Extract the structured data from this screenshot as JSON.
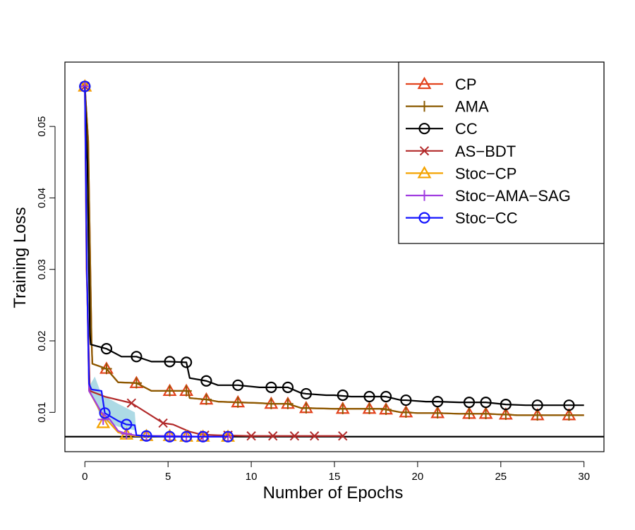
{
  "chart_data": {
    "type": "line",
    "title": "",
    "xlabel": "Number of Epochs",
    "ylabel": "Training Loss",
    "xlim": [
      -1.2,
      31.2
    ],
    "ylim": [
      0.0045,
      0.059
    ],
    "xticks": [
      0,
      5,
      10,
      15,
      20,
      25,
      30
    ],
    "xtick_labels": [
      "0",
      "5",
      "10",
      "15",
      "20",
      "25",
      "30"
    ],
    "yticks": [
      0.01,
      0.02,
      0.03,
      0.04,
      0.05
    ],
    "ytick_labels": [
      "0.01",
      "0.02",
      "0.03",
      "0.04",
      "0.05"
    ],
    "grid": false,
    "legend_position": "top-right",
    "reference_line": {
      "y": 0.0066,
      "color": "#000000"
    },
    "band": {
      "color": "#9fd3e0",
      "x": [
        0.3,
        0.6,
        1.0,
        2.0,
        3.0,
        3.1
      ],
      "upper": [
        0.0138,
        0.015,
        0.0125,
        0.0112,
        0.01,
        0.0068
      ],
      "lower": [
        0.013,
        0.0115,
        0.009,
        0.008,
        0.0075,
        0.0066
      ]
    },
    "series": [
      {
        "name": "CP",
        "color": "#e2431d",
        "marker": "triangle",
        "x": [
          0,
          0.2,
          0.4,
          0.45,
          1.3,
          2.0,
          3.1,
          4.0,
          5.1,
          6.0,
          6.2,
          6.3,
          7.3,
          8.0,
          9.2,
          10.5,
          11.2,
          12.0,
          12.2,
          13.0,
          13.3,
          15.0,
          15.5,
          16.0,
          17.1,
          18.0,
          18.1,
          19.0,
          19.3,
          20.0,
          21.2,
          22.5,
          23.1,
          24.0,
          24.1,
          25.0,
          25.3,
          26.0,
          27.2,
          28.0,
          29.1,
          30.0
        ],
        "y": [
          0.0556,
          0.048,
          0.02,
          0.0168,
          0.0161,
          0.0142,
          0.0141,
          0.013,
          0.013,
          0.013,
          0.013,
          0.012,
          0.0118,
          0.0115,
          0.0114,
          0.0113,
          0.0112,
          0.0112,
          0.0112,
          0.0106,
          0.0106,
          0.0105,
          0.0105,
          0.0105,
          0.0105,
          0.0105,
          0.0104,
          0.01,
          0.01,
          0.0099,
          0.0099,
          0.0098,
          0.0098,
          0.0098,
          0.0098,
          0.0097,
          0.0097,
          0.0096,
          0.0096,
          0.0096,
          0.0096,
          0.0096
        ],
        "markers_x": [
          0,
          1.3,
          3.1,
          5.1,
          6.1,
          7.3,
          9.2,
          11.2,
          12.2,
          13.3,
          15.5,
          17.1,
          18.1,
          19.3,
          21.2,
          23.1,
          24.1,
          25.3,
          27.2,
          29.1
        ],
        "markers_y": [
          0.0556,
          0.0161,
          0.0141,
          0.013,
          0.013,
          0.0118,
          0.0114,
          0.0112,
          0.0112,
          0.0106,
          0.0105,
          0.0105,
          0.0104,
          0.01,
          0.0099,
          0.0098,
          0.0098,
          0.0097,
          0.0096,
          0.0096
        ]
      },
      {
        "name": "AMA",
        "color": "#8b5a00",
        "marker": "plus",
        "x": [
          0,
          0.2,
          0.4,
          0.45,
          1.3,
          2.0,
          3.1,
          4.0,
          5.1,
          6.0,
          6.2,
          6.3,
          7.3,
          8.0,
          9.2,
          10.5,
          11.2,
          12.0,
          12.2,
          13.0,
          13.3,
          15.0,
          15.5,
          16.0,
          17.1,
          18.0,
          18.1,
          19.0,
          19.3,
          20.0,
          21.2,
          22.5,
          23.1,
          24.0,
          24.1,
          25.0,
          25.3,
          26.0,
          27.2,
          28.0,
          29.1,
          30.0
        ],
        "y": [
          0.0556,
          0.048,
          0.02,
          0.0168,
          0.0161,
          0.0142,
          0.0141,
          0.013,
          0.013,
          0.013,
          0.013,
          0.012,
          0.0118,
          0.0115,
          0.0114,
          0.0113,
          0.0112,
          0.0112,
          0.0112,
          0.0106,
          0.0106,
          0.0105,
          0.0105,
          0.0105,
          0.0105,
          0.0105,
          0.0104,
          0.01,
          0.01,
          0.0099,
          0.0099,
          0.0098,
          0.0098,
          0.0098,
          0.0098,
          0.0097,
          0.0097,
          0.0096,
          0.0096,
          0.0096,
          0.0096,
          0.0096
        ],
        "markers_x": [
          0,
          1.3,
          3.1,
          5.1,
          6.1,
          7.3,
          9.2,
          11.2,
          12.2,
          13.3,
          15.5,
          17.1,
          18.1,
          19.3,
          21.2,
          23.1,
          24.1,
          25.3,
          27.2,
          29.1
        ],
        "markers_y": [
          0.0556,
          0.0161,
          0.0141,
          0.013,
          0.013,
          0.0118,
          0.0114,
          0.0112,
          0.0112,
          0.0106,
          0.0105,
          0.0105,
          0.0104,
          0.01,
          0.0099,
          0.0098,
          0.0098,
          0.0097,
          0.0096,
          0.0096
        ]
      },
      {
        "name": "CC",
        "color": "#000000",
        "marker": "circle",
        "x": [
          0,
          0.15,
          0.3,
          0.35,
          1.3,
          2.2,
          3.1,
          4.0,
          5.1,
          6.0,
          6.1,
          6.3,
          7.3,
          8.0,
          9.2,
          10.5,
          11.2,
          12.0,
          12.2,
          13.0,
          13.3,
          14.5,
          15.0,
          16.0,
          17.1,
          18.0,
          18.1,
          19.0,
          19.3,
          20.5,
          21.2,
          22.5,
          23.1,
          24.1,
          25.3,
          26.5,
          27.2,
          28.0,
          29.1,
          30.0
        ],
        "y": [
          0.0556,
          0.045,
          0.021,
          0.0195,
          0.0189,
          0.0178,
          0.0178,
          0.0171,
          0.0171,
          0.017,
          0.017,
          0.0148,
          0.0144,
          0.0138,
          0.0138,
          0.0135,
          0.0135,
          0.0135,
          0.0135,
          0.0127,
          0.0126,
          0.0124,
          0.0124,
          0.0122,
          0.0122,
          0.0122,
          0.0122,
          0.0117,
          0.0117,
          0.0115,
          0.0115,
          0.0114,
          0.0114,
          0.0114,
          0.0111,
          0.011,
          0.011,
          0.011,
          0.011,
          0.011
        ],
        "markers_x": [
          0,
          1.3,
          3.1,
          5.1,
          6.1,
          7.3,
          9.2,
          11.2,
          12.2,
          13.3,
          15.5,
          17.1,
          18.1,
          19.3,
          21.2,
          23.1,
          24.1,
          25.3,
          27.2,
          29.1
        ],
        "markers_y": [
          0.0556,
          0.0189,
          0.0178,
          0.0171,
          0.017,
          0.0144,
          0.0138,
          0.0135,
          0.0135,
          0.0126,
          0.0124,
          0.0122,
          0.0122,
          0.0117,
          0.0115,
          0.0114,
          0.0114,
          0.0111,
          0.011,
          0.011
        ]
      },
      {
        "name": "AS−BDT",
        "color": "#b22a2a",
        "marker": "cross",
        "x": [
          0,
          0.1,
          0.3,
          1.2,
          2.8,
          4.7,
          5.3,
          6.3,
          7.0,
          8.0,
          10.0,
          12.0,
          15.5
        ],
        "y": [
          0.0556,
          0.03,
          0.013,
          0.0122,
          0.0113,
          0.0085,
          0.0083,
          0.0073,
          0.0069,
          0.0068,
          0.0067,
          0.0067,
          0.0067
        ],
        "markers_x": [
          0,
          2.8,
          4.7,
          7.2,
          8.6,
          10.0,
          11.3,
          12.6,
          13.8,
          15.5
        ],
        "markers_y": [
          0.0556,
          0.0113,
          0.0085,
          0.0068,
          0.0068,
          0.0067,
          0.0067,
          0.0067,
          0.0067,
          0.0067
        ]
      },
      {
        "name": "Stoc−CP",
        "color": "#f4a300",
        "marker": "triangle",
        "x": [
          0,
          0.12,
          0.25,
          1.0,
          1.5,
          2.0,
          2.5,
          3.0,
          3.7,
          5.0,
          7.0,
          8.6
        ],
        "y": [
          0.0556,
          0.03,
          0.013,
          0.0098,
          0.0085,
          0.0072,
          0.0069,
          0.0067,
          0.0067,
          0.0067,
          0.0066,
          0.0066
        ],
        "markers_x": [
          0,
          1.1,
          2.5,
          3.7,
          5.1,
          6.1,
          7.1,
          8.6
        ],
        "markers_y": [
          0.0556,
          0.0085,
          0.0069,
          0.0067,
          0.0067,
          0.0066,
          0.0066,
          0.0066
        ]
      },
      {
        "name": "Stoc−AMA−SAG",
        "color": "#a03ce0",
        "marker": "plus",
        "x": [
          0,
          0.12,
          0.25,
          1.0,
          1.5,
          2.0,
          2.5,
          3.0,
          3.7,
          5.0,
          7.0,
          8.6
        ],
        "y": [
          0.0556,
          0.03,
          0.013,
          0.01,
          0.009,
          0.0074,
          0.007,
          0.0068,
          0.0067,
          0.0067,
          0.0066,
          0.0066
        ],
        "markers_x": [
          0,
          1.1,
          2.5,
          3.7,
          5.1,
          6.1,
          7.1,
          8.6
        ],
        "markers_y": [
          0.0556,
          0.009,
          0.007,
          0.0067,
          0.0067,
          0.0066,
          0.0066,
          0.0066
        ]
      },
      {
        "name": "Stoc−CC",
        "color": "#1414ff",
        "marker": "circle",
        "x": [
          0,
          0.12,
          0.25,
          0.4,
          1.0,
          1.2,
          2.0,
          2.5,
          3.0,
          3.1,
          3.7,
          5.0,
          7.0,
          8.6
        ],
        "y": [
          0.0556,
          0.03,
          0.014,
          0.0132,
          0.013,
          0.0099,
          0.0088,
          0.0083,
          0.0082,
          0.0068,
          0.0067,
          0.0066,
          0.0066,
          0.0066
        ],
        "markers_x": [
          0,
          1.2,
          2.5,
          3.7,
          5.1,
          6.1,
          7.1,
          8.6
        ],
        "markers_y": [
          0.0556,
          0.0099,
          0.0083,
          0.0067,
          0.0066,
          0.0066,
          0.0066,
          0.0066
        ]
      }
    ]
  }
}
